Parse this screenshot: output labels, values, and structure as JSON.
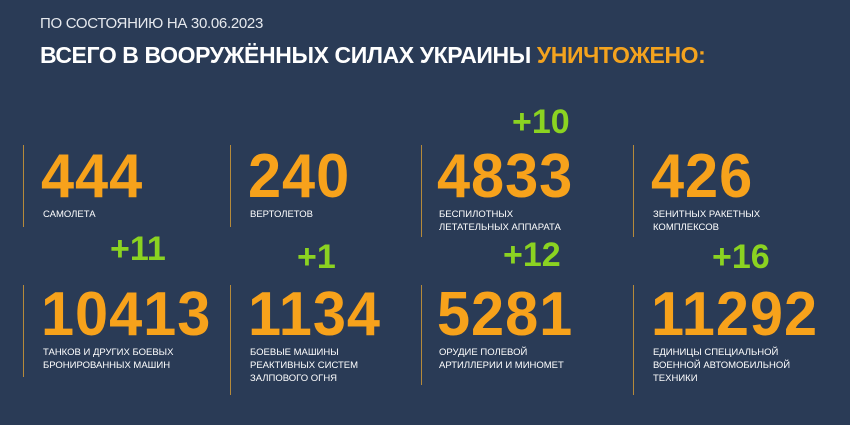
{
  "header": {
    "date_line": "ПО СОСТОЯНИЮ НА 30.06.2023",
    "title_main": "ВСЕГО В ВООРУЖЁННЫХ СИЛАХ УКРАИНЫ ",
    "title_highlight": "УНИЧТОЖЕНО:"
  },
  "colors": {
    "background": "#2a3b56",
    "number": "#f7a21b",
    "increment": "#8bd321",
    "highlight": "#f4a31e"
  },
  "stats": [
    {
      "value": "444",
      "label": [
        "САМОЛЕТА"
      ],
      "increment": ""
    },
    {
      "value": "240",
      "label": [
        "ВЕРТОЛЕТОВ"
      ],
      "increment": ""
    },
    {
      "value": "4833",
      "label": [
        "БЕСПИЛОТНЫХ",
        "ЛЕТАТЕЛЬНЫХ АППАРАТА"
      ],
      "increment": "+10"
    },
    {
      "value": "426",
      "label": [
        "ЗЕНИТНЫХ РАКЕТНЫХ",
        "КОМПЛЕКСОВ"
      ],
      "increment": ""
    },
    {
      "value": "10413",
      "label": [
        "ТАНКОВ И ДРУГИХ БОЕВЫХ",
        "БРОНИРОВАННЫХ МАШИН"
      ],
      "increment": "+11"
    },
    {
      "value": "1134",
      "label": [
        "БОЕВЫЕ МАШИНЫ",
        "РЕАКТИВНЫХ СИСТЕМ",
        "ЗАЛПОВОГО ОГНЯ"
      ],
      "increment": "+1"
    },
    {
      "value": "5281",
      "label": [
        "ОРУДИЕ ПОЛЕВОЙ",
        "АРТИЛЛЕРИИ И МИНОМЕТ"
      ],
      "increment": "+12"
    },
    {
      "value": "11292",
      "label": [
        "ЕДИНИЦЫ СПЕЦИАЛЬНОЙ",
        "ВОЕННОЙ АВТОМОБИЛЬНОЙ",
        "ТЕХНИКИ"
      ],
      "increment": "+16"
    }
  ]
}
